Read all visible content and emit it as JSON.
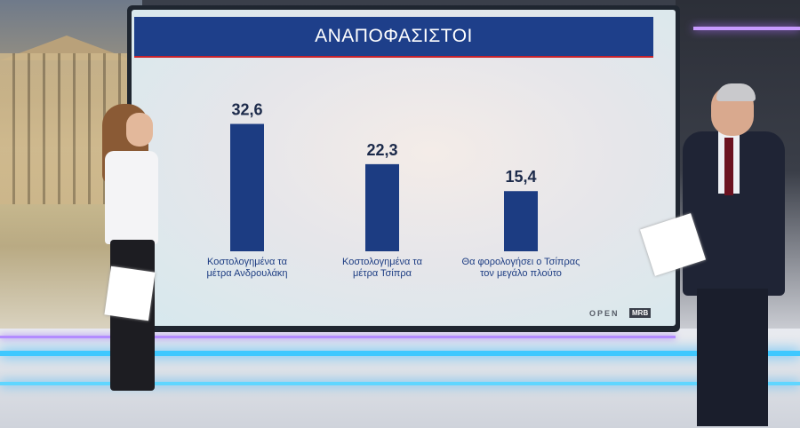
{
  "chart_data": {
    "type": "bar",
    "title": "ΑΝΑΠΟΦΑΣΙΣΤΟΙ",
    "categories": [
      [
        "Κοστολογημένα τα",
        "μέτρα Ανδρουλάκη"
      ],
      [
        "Κοστολογημένα τα",
        "μέτρα Τσίπρα"
      ],
      [
        "Θα φορολογήσει ο Τσίπρας",
        "τον μεγάλο πλούτο"
      ]
    ],
    "values": [
      32.6,
      22.3,
      15.4
    ],
    "value_labels": [
      "32,6",
      "22,3",
      "15,4"
    ],
    "ylim": [
      0,
      40
    ],
    "grid": false,
    "bar_color": "#1c3c82"
  },
  "logos": {
    "channel": "OPEN",
    "pollster": "MRB"
  },
  "colors": {
    "title_bar": "#1e3f8a",
    "title_underline": "#c8232c",
    "neon": "#3ec8ff"
  }
}
